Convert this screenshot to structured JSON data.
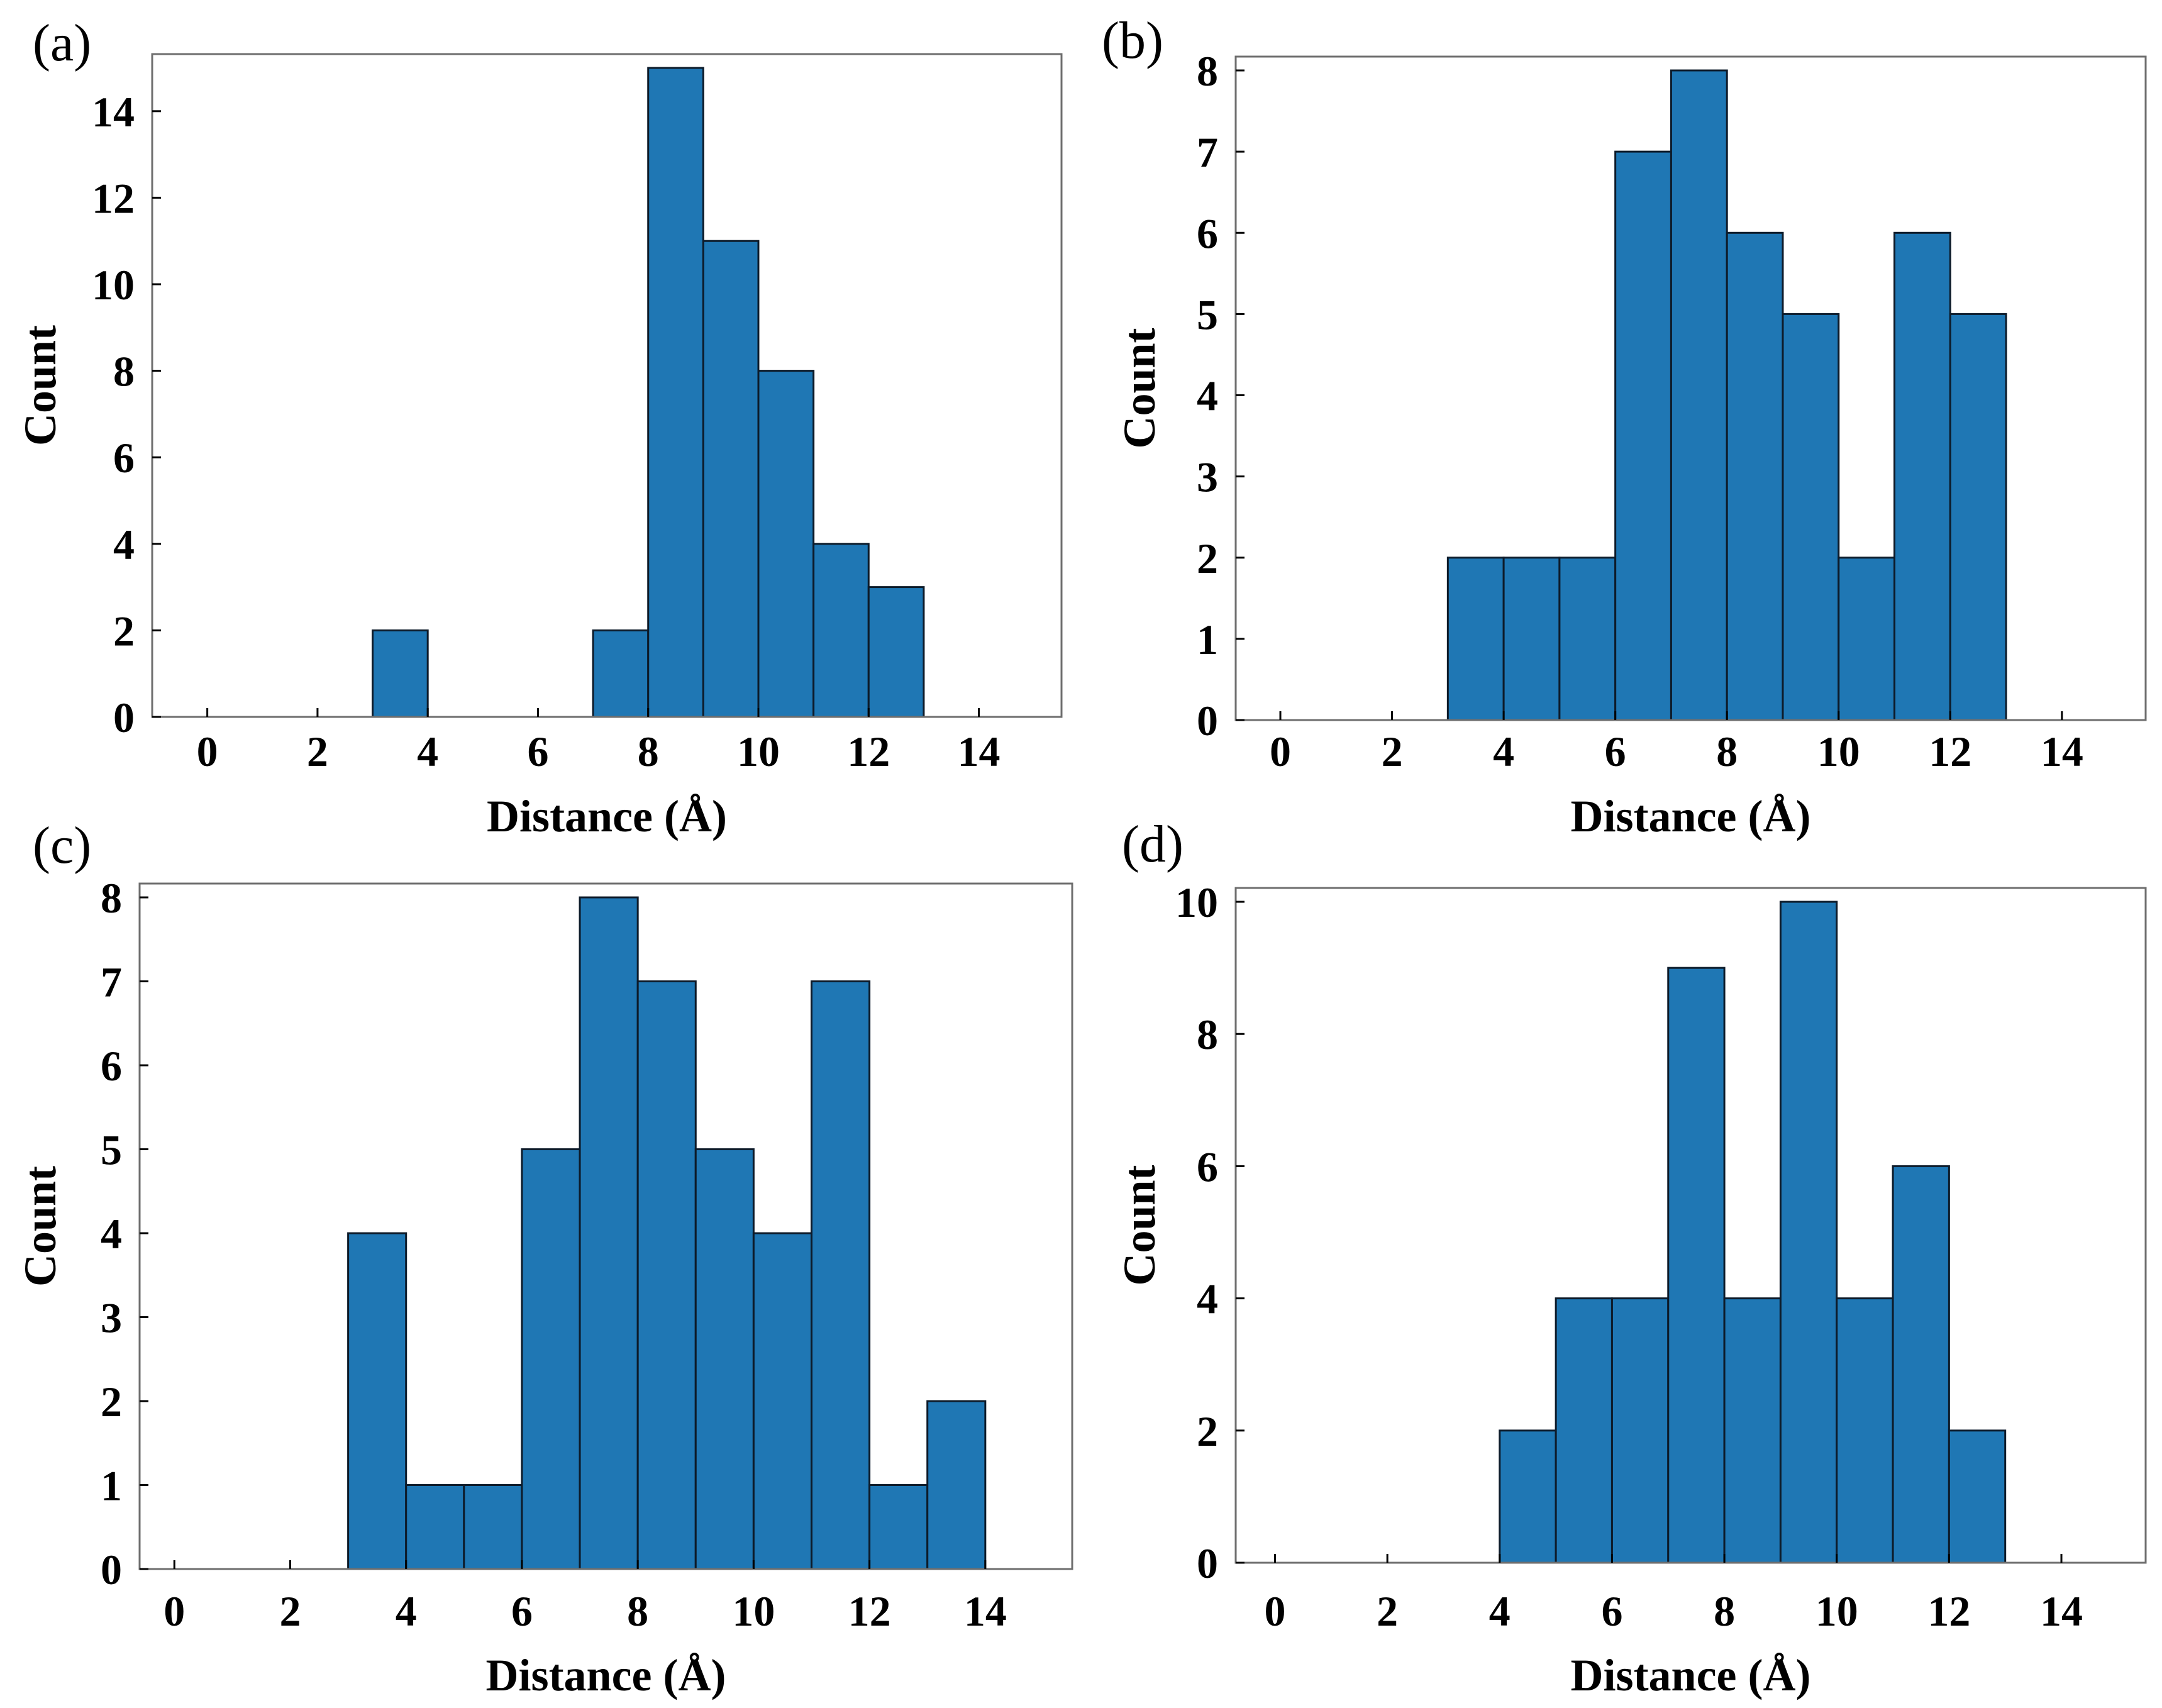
{
  "figure": {
    "bar_color": "#1f77b4",
    "edge_color": "#0d1b2a"
  },
  "chart_data": [
    {
      "type": "bar",
      "panel_label": "(a)",
      "xlabel": "Distance (Å)",
      "ylabel": "Count",
      "xlim": [
        -1,
        15.5
      ],
      "ylim": [
        0,
        15
      ],
      "xticks": [
        0,
        2,
        4,
        6,
        8,
        10,
        12,
        14
      ],
      "yticks": [
        0,
        2,
        4,
        6,
        8,
        10,
        12,
        14
      ],
      "bin_width": 1,
      "bins": [
        {
          "start": 3,
          "end": 4,
          "count": 2
        },
        {
          "start": 7,
          "end": 8,
          "count": 2
        },
        {
          "start": 8,
          "end": 9,
          "count": 15
        },
        {
          "start": 9,
          "end": 10,
          "count": 11
        },
        {
          "start": 10,
          "end": 11,
          "count": 8
        },
        {
          "start": 11,
          "end": 12,
          "count": 4
        },
        {
          "start": 12,
          "end": 13,
          "count": 3
        }
      ]
    },
    {
      "type": "bar",
      "panel_label": "(b)",
      "xlabel": "Distance (Å)",
      "ylabel": "Count",
      "xlim": [
        -0.8,
        15.5
      ],
      "ylim": [
        0,
        8
      ],
      "xticks": [
        0,
        2,
        4,
        6,
        8,
        10,
        12,
        14
      ],
      "yticks": [
        0,
        1,
        2,
        3,
        4,
        5,
        6,
        7,
        8
      ],
      "bin_width": 1,
      "bins": [
        {
          "start": 3,
          "end": 4,
          "count": 2
        },
        {
          "start": 4,
          "end": 5,
          "count": 2
        },
        {
          "start": 5,
          "end": 6,
          "count": 2
        },
        {
          "start": 6,
          "end": 7,
          "count": 7
        },
        {
          "start": 7,
          "end": 8,
          "count": 8
        },
        {
          "start": 8,
          "end": 9,
          "count": 6
        },
        {
          "start": 9,
          "end": 10,
          "count": 5
        },
        {
          "start": 10,
          "end": 11,
          "count": 2
        },
        {
          "start": 11,
          "end": 12,
          "count": 6
        },
        {
          "start": 12,
          "end": 13,
          "count": 5
        }
      ]
    },
    {
      "type": "bar",
      "panel_label": "(c)",
      "xlabel": "Distance (Å)",
      "ylabel": "Count",
      "xlim": [
        -0.6,
        15.5
      ],
      "ylim": [
        0,
        8
      ],
      "xticks": [
        0,
        2,
        4,
        6,
        8,
        10,
        12,
        14
      ],
      "yticks": [
        0,
        1,
        2,
        3,
        4,
        5,
        6,
        7,
        8
      ],
      "bin_width": 1,
      "bins": [
        {
          "start": 3,
          "end": 4,
          "count": 4
        },
        {
          "start": 4,
          "end": 5,
          "count": 1
        },
        {
          "start": 5,
          "end": 6,
          "count": 1
        },
        {
          "start": 6,
          "end": 7,
          "count": 5
        },
        {
          "start": 7,
          "end": 8,
          "count": 8
        },
        {
          "start": 8,
          "end": 9,
          "count": 7
        },
        {
          "start": 9,
          "end": 10,
          "count": 5
        },
        {
          "start": 10,
          "end": 11,
          "count": 4
        },
        {
          "start": 11,
          "end": 12,
          "count": 7
        },
        {
          "start": 12,
          "end": 13,
          "count": 1
        },
        {
          "start": 13,
          "end": 14,
          "count": 2
        }
      ]
    },
    {
      "type": "bar",
      "panel_label": "(d)",
      "xlabel": "Distance (Å)",
      "ylabel": "Count",
      "xlim": [
        -0.7,
        15.5
      ],
      "ylim": [
        0,
        10
      ],
      "xticks": [
        0,
        2,
        4,
        6,
        8,
        10,
        12,
        14
      ],
      "yticks": [
        0,
        2,
        4,
        6,
        8,
        10
      ],
      "bin_width": 1,
      "bins": [
        {
          "start": 4,
          "end": 5,
          "count": 2
        },
        {
          "start": 5,
          "end": 6,
          "count": 4
        },
        {
          "start": 6,
          "end": 7,
          "count": 4
        },
        {
          "start": 7,
          "end": 8,
          "count": 9
        },
        {
          "start": 8,
          "end": 9,
          "count": 4
        },
        {
          "start": 9,
          "end": 10,
          "count": 10
        },
        {
          "start": 10,
          "end": 11,
          "count": 4
        },
        {
          "start": 11,
          "end": 12,
          "count": 6
        },
        {
          "start": 12,
          "end": 13,
          "count": 2
        }
      ]
    }
  ]
}
